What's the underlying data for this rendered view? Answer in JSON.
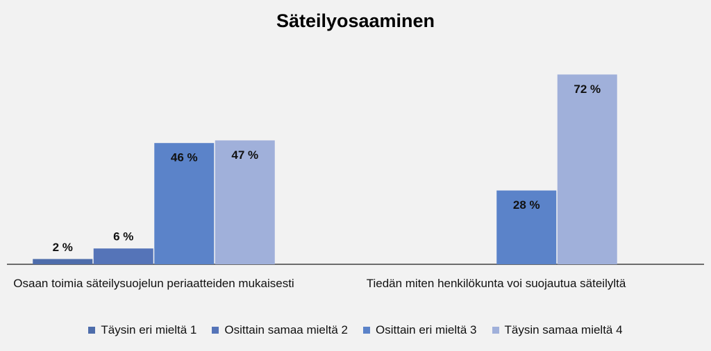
{
  "chart_data": {
    "type": "bar",
    "title": "Säteilyosaaminen",
    "categories": [
      "Osaan toimia säteilysuojelun periaatteiden mukaisesti",
      "Tiedän miten henkilökunta voi suojautua säteilyltä"
    ],
    "series": [
      {
        "name": "Täysin eri mieltä 1",
        "color": "#4e6dab",
        "values": [
          2,
          null
        ],
        "value_labels": [
          "2 %",
          null
        ]
      },
      {
        "name": "Osittain samaa mieltä 2",
        "color": "#5574b8",
        "values": [
          6,
          null
        ],
        "value_labels": [
          "6 %",
          null
        ]
      },
      {
        "name": "Osittain eri mieltä 3",
        "color": "#5b83c9",
        "values": [
          46,
          28
        ],
        "value_labels": [
          "46 %",
          "28 %"
        ]
      },
      {
        "name": "Täysin samaa mieltä 4",
        "color": "#a0b0da",
        "values": [
          47,
          72
        ],
        "value_labels": [
          "47 %",
          "72 %"
        ]
      }
    ],
    "legend": "bottom"
  }
}
